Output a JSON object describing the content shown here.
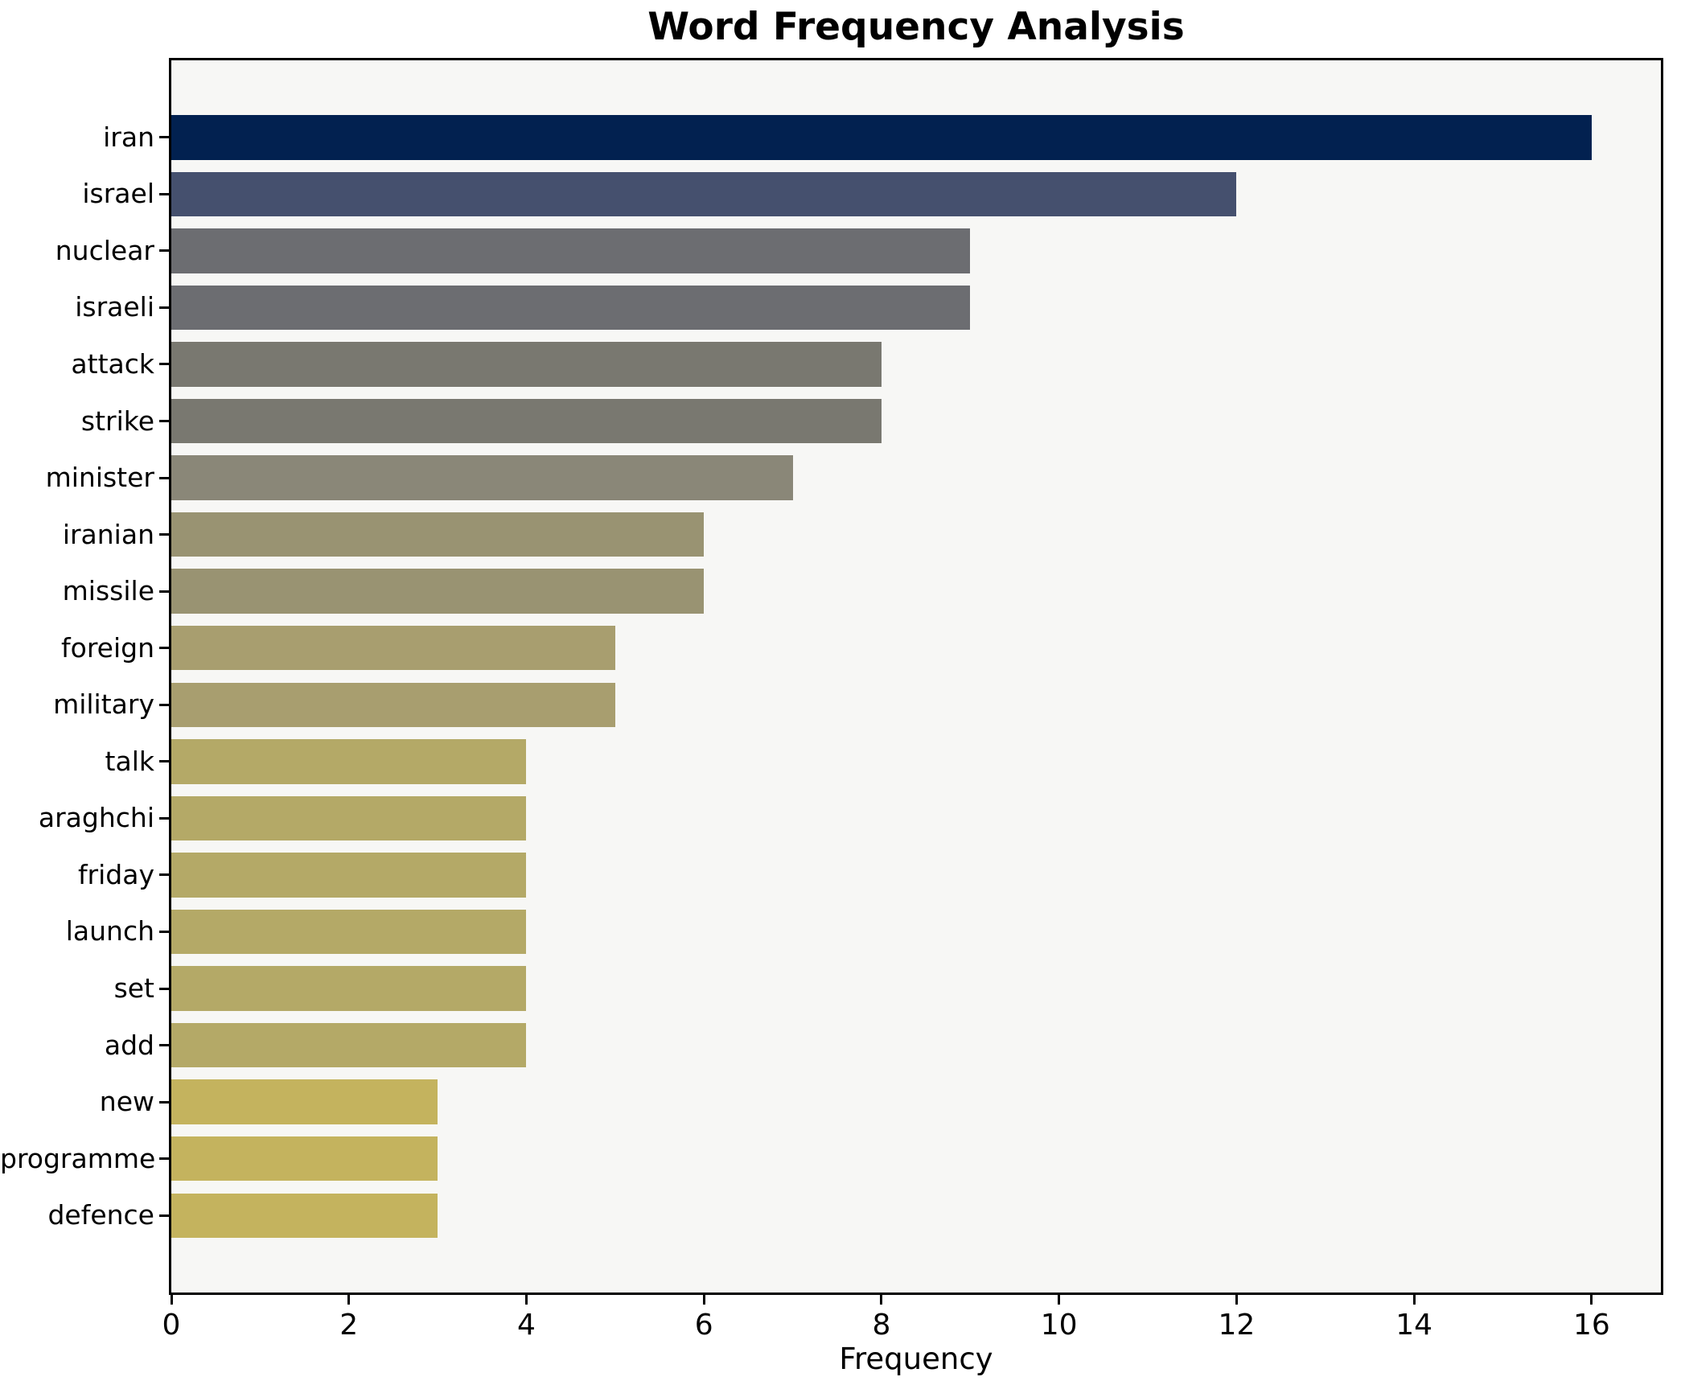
{
  "title": "Word Frequency Analysis",
  "colors": {
    "page_background": "#ffffff",
    "plot_background": "#f7f7f5",
    "spine": "#000000",
    "text": "#000000"
  },
  "chart_data": {
    "type": "bar",
    "orientation": "horizontal",
    "title": "Word Frequency Analysis",
    "xlabel": "Frequency",
    "ylabel": "",
    "categories": [
      "iran",
      "israel",
      "nuclear",
      "israeli",
      "attack",
      "strike",
      "minister",
      "iranian",
      "missile",
      "foreign",
      "military",
      "talk",
      "araghchi",
      "friday",
      "launch",
      "set",
      "add",
      "new",
      "programme",
      "defence"
    ],
    "values": [
      16,
      12,
      9,
      9,
      8,
      8,
      7,
      6,
      6,
      5,
      5,
      4,
      4,
      4,
      4,
      4,
      4,
      3,
      3,
      3
    ],
    "bar_colors": [
      "#022150",
      "#45506e",
      "#6c6d71",
      "#6c6d71",
      "#797870",
      "#797870",
      "#8a8778",
      "#999372",
      "#999372",
      "#a89e6f",
      "#a89e6f",
      "#b4a967",
      "#b4a967",
      "#b4a967",
      "#b4a967",
      "#b4a967",
      "#b4a967",
      "#c4b35e",
      "#c4b35e",
      "#c4b35e"
    ],
    "xlim": [
      0,
      16.78
    ],
    "xticks": [
      0,
      2,
      4,
      6,
      8,
      10,
      12,
      14,
      16
    ],
    "grid": false,
    "legend": false,
    "bars_sorted": "descending"
  }
}
